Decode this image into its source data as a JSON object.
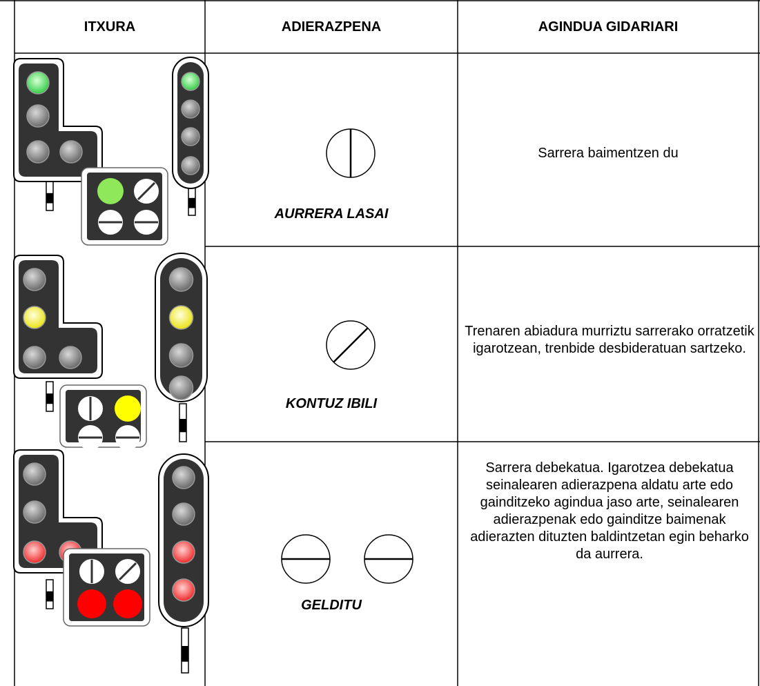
{
  "header": [
    "ITXURA",
    "ADIERAZPENA",
    "AGINDUA GIDARIARI"
  ],
  "rows": [
    {
      "signal_name": "AURRERA LASAI",
      "description": "Sarrera baimentzen du"
    },
    {
      "signal_name": "KONTUZ IBILI",
      "description": "Trenaren abiadura murriztu sarrerako orratzetik igarotzean, trenbide desbideratuan sartzeko."
    },
    {
      "signal_name": "GELDITU",
      "description": "Sarrera debekatua. Igarotzea debekatua seinalearen adierazpena aldatu arte edo gainditzeko agindua jaso arte, seinalearen adierazpenak edo gainditze baimenak adierazten dituzten baldintzetan egin beharko da aurrera."
    }
  ]
}
